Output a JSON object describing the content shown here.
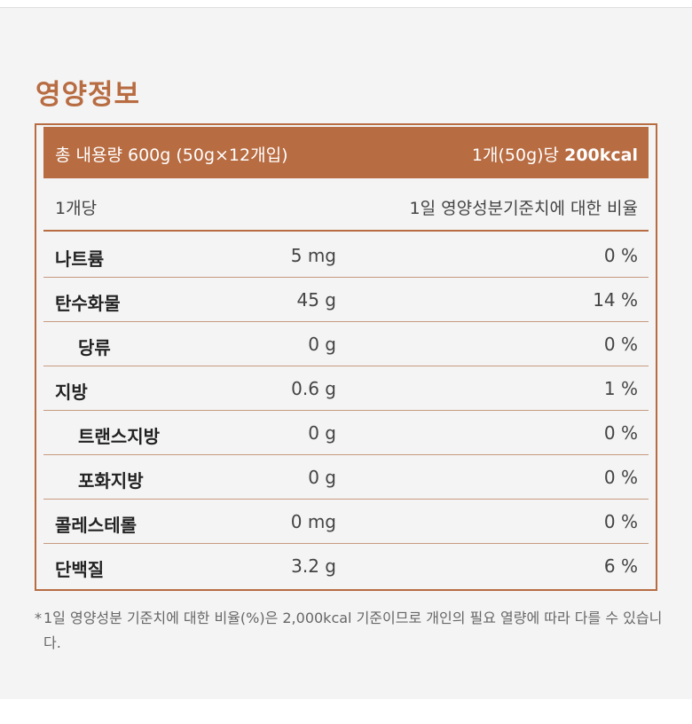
{
  "title": "영양정보",
  "header": {
    "total": "총 내용량 600g (50g×12개입)",
    "per_prefix": "1개(50g)당",
    "kcal": "200kcal"
  },
  "subheader": {
    "per_unit": "1개당",
    "ratio_label": "1일 영양성분기준치에 대한 비율"
  },
  "rows": [
    {
      "name": "나트륨",
      "amount": "5 mg",
      "percent": "0 %"
    },
    {
      "name": "탄수화물",
      "amount": "45 g",
      "percent": "14 %"
    },
    {
      "name": "당류",
      "amount": "0 g",
      "percent": "0 %"
    },
    {
      "name": "지방",
      "amount": "0.6 g",
      "percent": "1 %"
    },
    {
      "name": "트랜스지방",
      "amount": "0 g",
      "percent": "0 %"
    },
    {
      "name": "포화지방",
      "amount": "0 g",
      "percent": "0 %"
    },
    {
      "name": "콜레스테롤",
      "amount": "0 mg",
      "percent": "0 %"
    },
    {
      "name": "단백질",
      "amount": "3.2 g",
      "percent": "6 %"
    }
  ],
  "footnote": {
    "mark": "*",
    "text": "1일 영양성분 기준치에 대한 비율(%)은 2,000kcal 기준이므로 개인의 필요 열량에 따라 다를 수 있습니다."
  },
  "colors": {
    "accent": "#b86c42",
    "background": "#f4f4f4"
  }
}
